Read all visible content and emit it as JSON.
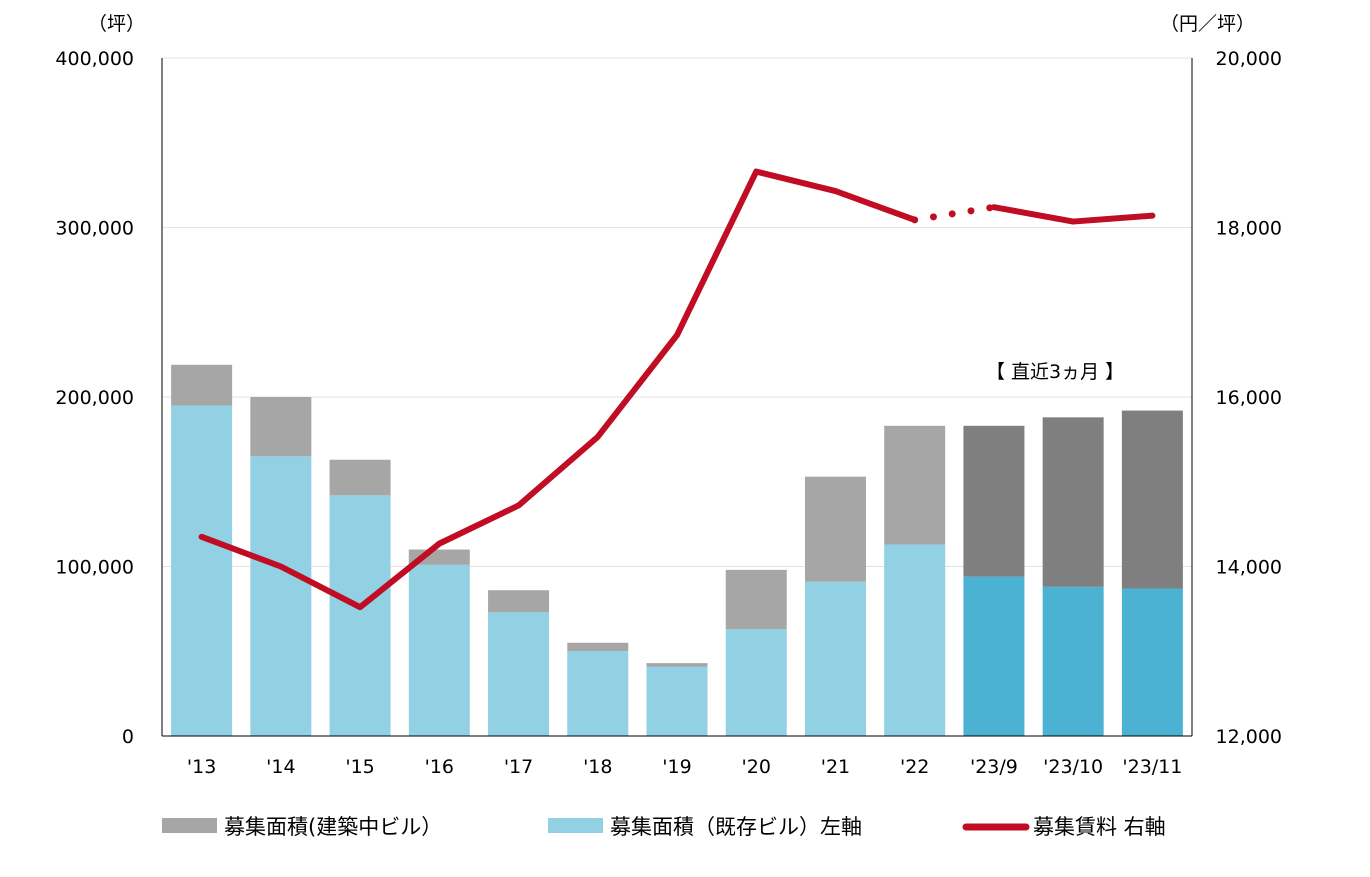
{
  "chart_data": {
    "type": "bar",
    "stacked": true,
    "categories": [
      "'13",
      "'14",
      "'15",
      "'16",
      "'17",
      "'18",
      "'19",
      "'20",
      "'21",
      "'22",
      "'23/9",
      "'23/10",
      "'23/11"
    ],
    "y_left": {
      "unit_label": "（坪）",
      "range": [
        0,
        400000
      ],
      "ticks": [
        0,
        100000,
        200000,
        300000,
        400000
      ],
      "tick_labels": [
        "0",
        "100,000",
        "200,000",
        "300,000",
        "400,000"
      ]
    },
    "y_right": {
      "unit_label": "（円／坪）",
      "range": [
        12000,
        20000
      ],
      "ticks": [
        12000,
        14000,
        16000,
        18000,
        20000
      ],
      "tick_labels": [
        "12,000",
        "14,000",
        "16,000",
        "18,000",
        "20,000"
      ]
    },
    "grid": true,
    "series": [
      {
        "name": "募集面積（既存ビル）左軸",
        "type": "bar",
        "axis": "left",
        "color": "#92d0e3",
        "recent_color": "#4bb2d3",
        "values": [
          195000,
          165000,
          142000,
          101000,
          73000,
          50000,
          41000,
          63000,
          91000,
          113000,
          94000,
          88000,
          87000
        ]
      },
      {
        "name": "募集面積（建築中ビル）",
        "type": "bar",
        "axis": "left",
        "color": "#a6a6a6",
        "recent_color": "#7f7f7f",
        "values": [
          24000,
          35000,
          21000,
          9000,
          13000,
          5000,
          2000,
          35000,
          62000,
          70000,
          89000,
          100000,
          105000
        ]
      },
      {
        "name": "募集賃料 右軸",
        "type": "line",
        "axis": "right",
        "color": "#c00d23",
        "values": [
          14350,
          14000,
          13520,
          14270,
          14720,
          15530,
          16730,
          18660,
          18430,
          18090,
          18240,
          18070,
          18140
        ],
        "dotted_between": [
          9,
          10
        ]
      }
    ],
    "annotation": "【 直近3ヵ月 】",
    "recent_count": 3,
    "legend": {
      "placement": "bottom",
      "items": [
        {
          "label": "募集面積(建築中ビル）",
          "color": "#a6a6a6",
          "kind": "bar"
        },
        {
          "label": "募集面積（既存ビル）左軸",
          "color": "#92d0e3",
          "kind": "bar"
        },
        {
          "label": "募集賃料 右軸",
          "color": "#c00d23",
          "kind": "line"
        }
      ]
    }
  }
}
